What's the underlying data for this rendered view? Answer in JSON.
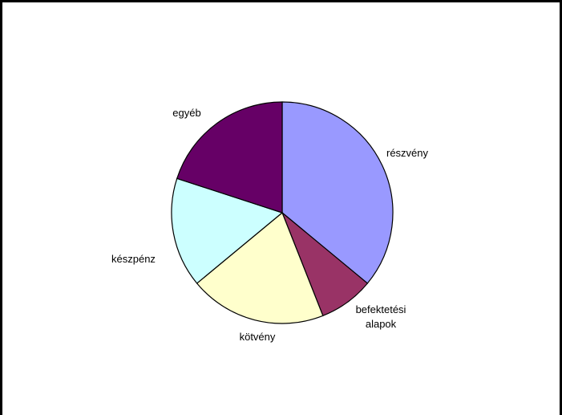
{
  "chart_data": {
    "type": "pie",
    "title": "",
    "labels": [
      "részvény",
      "befektetési alapok",
      "kötvény",
      "készpénz",
      "egyéb"
    ],
    "values": [
      36,
      8,
      20,
      16,
      20
    ],
    "unit": "%",
    "colors": [
      "#9999ff",
      "#993366",
      "#ffffcc",
      "#ccffff",
      "#660066"
    ],
    "start_angle_deg": 0,
    "direction": "clockwise",
    "legend": "none",
    "data_labels": "category names outside slices"
  }
}
